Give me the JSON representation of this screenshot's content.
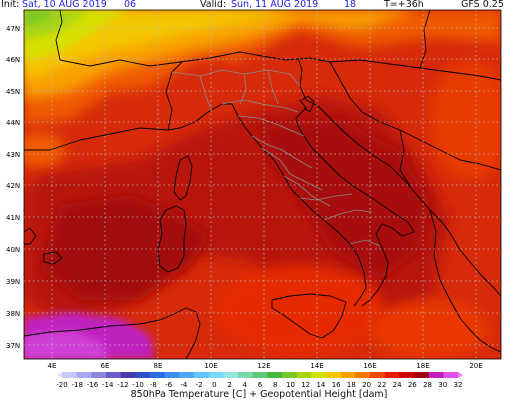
{
  "header": {
    "init_label": "Init:",
    "init_value": "Sat, 10 AUG 2019",
    "init_hour": "06",
    "valid_label": "Valid:",
    "valid_value": "Sun, 11 AUG 2019",
    "valid_hour": "18",
    "lead_time": "T=+36h",
    "model": "GFS 0.25"
  },
  "map": {
    "lat_labels": [
      "47N",
      "46N",
      "45N",
      "44N",
      "43N",
      "42N",
      "41N",
      "40N",
      "39N",
      "38N",
      "37N"
    ],
    "lon_labels": [
      "4E",
      "6E",
      "8E",
      "10E",
      "12E",
      "14E",
      "16E",
      "18E",
      "20E"
    ]
  },
  "colorbar": {
    "labels": [
      "-20",
      "-18",
      "-16",
      "-14",
      "-12",
      "-10",
      "-8",
      "-6",
      "-4",
      "-2",
      "0",
      "2",
      "4",
      "6",
      "8",
      "10",
      "12",
      "14",
      "16",
      "18",
      "20",
      "22",
      "24",
      "26",
      "28",
      "30",
      "32"
    ],
    "colors": [
      "#c8c8ff",
      "#a8a8ee",
      "#8888dd",
      "#6a5acd",
      "#4b3bb0",
      "#3050c8",
      "#2a6ae0",
      "#3b8df0",
      "#4ca8f8",
      "#62c4ff",
      "#7ad8ff",
      "#94e6e0",
      "#78d8a8",
      "#5cc878",
      "#46b83c",
      "#78c828",
      "#a8d414",
      "#d4e004",
      "#f4c800",
      "#f8a000",
      "#f47800",
      "#f04800",
      "#e41c00",
      "#cc0404",
      "#a00010",
      "#c020c0",
      "#e050e8"
    ]
  },
  "footer": {
    "title": "850hPa Temperature [C] + Geopotential Height [dam]"
  }
}
